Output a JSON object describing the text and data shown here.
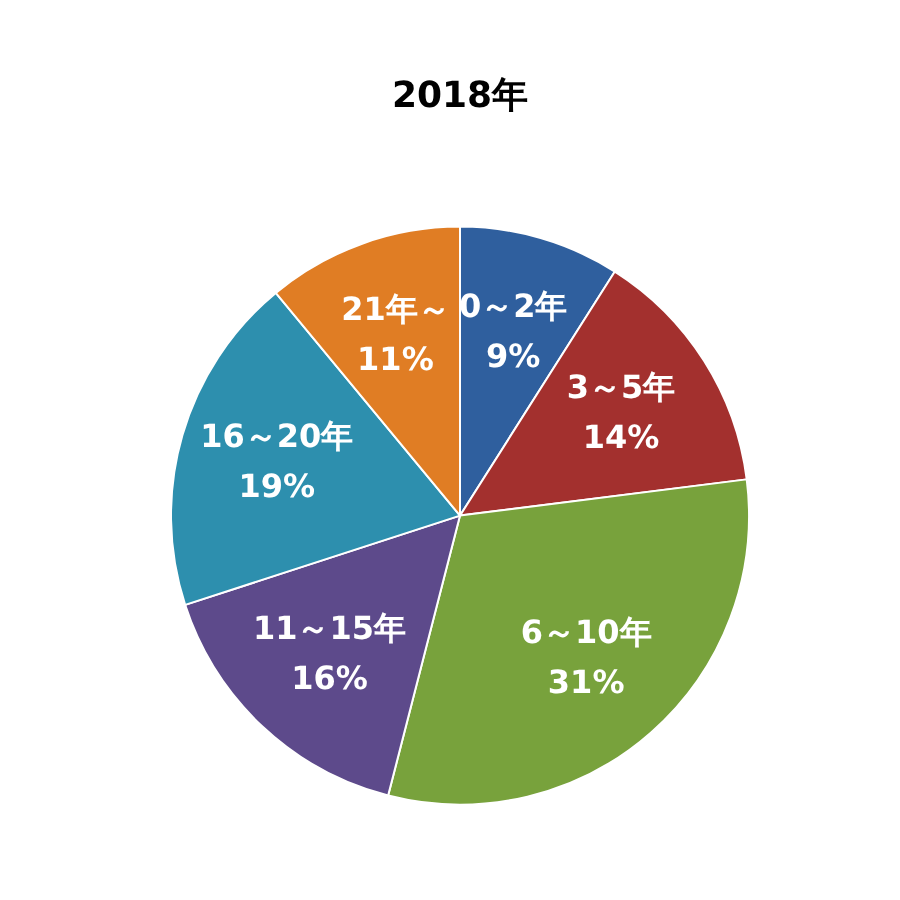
{
  "chart_data": {
    "type": "pie",
    "title": "2018年",
    "categories": [
      "0～2年",
      "3～5年",
      "6～10年",
      "11～15年",
      "16～20年",
      "21年～"
    ],
    "values": [
      9,
      14,
      31,
      16,
      19,
      11
    ],
    "value_labels": [
      "9%",
      "14%",
      "31%",
      "16%",
      "19%",
      "11%"
    ],
    "colors": [
      "#2f5f9e",
      "#a3302e",
      "#78a23c",
      "#5d4a8b",
      "#2d8fae",
      "#e07d24"
    ],
    "legend": false
  }
}
